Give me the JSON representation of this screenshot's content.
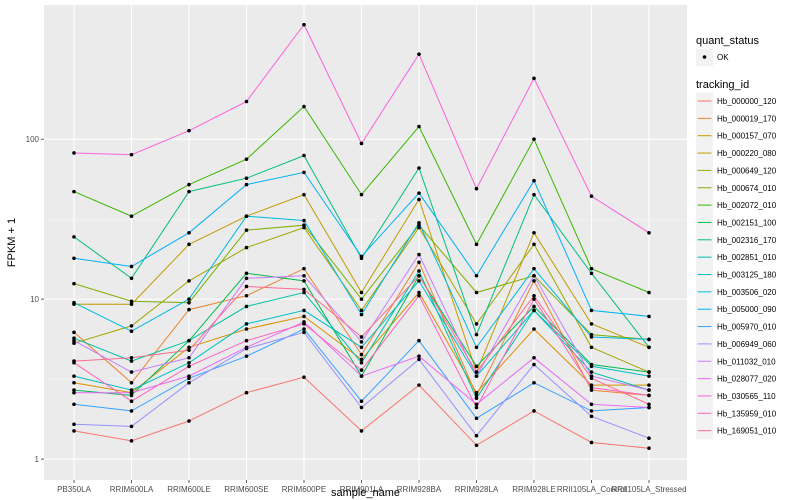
{
  "chart_data": {
    "type": "line",
    "title": "",
    "xlabel": "sample_name",
    "ylabel": "FPKM + 1",
    "yscale": "log10",
    "ylim": [
      0.74,
      690
    ],
    "yticks": [
      1,
      10,
      100
    ],
    "ytick_labels": [
      "1",
      "10",
      "100"
    ],
    "grid": true,
    "legend_position": "right",
    "categories": [
      "PB350LA",
      "RRIM600LA",
      "RRIM600LE",
      "RRIM600SE",
      "RRIM600PE",
      "RRIM901LA",
      "RRIM928BA",
      "RRIM928LA",
      "RRIM928LE",
      "RRII105LA_Control",
      "RRII105LA_Stressed"
    ],
    "point_legend": {
      "title": "quant_status",
      "entries": [
        "OK"
      ]
    },
    "line_legend_title": "tracking_id",
    "series": [
      {
        "name": "Hb_000000_120",
        "color": "#F8766D",
        "values": [
          1.5,
          1.3,
          1.73,
          2.6,
          3.25,
          1.5,
          2.9,
          1.22,
          2.0,
          1.27,
          1.17
        ]
      },
      {
        "name": "Hb_000019_170",
        "color": "#EA8331",
        "values": [
          6.2,
          3.0,
          8.6,
          10.5,
          15.5,
          4.5,
          17,
          2.5,
          13,
          2.7,
          2.5
        ]
      },
      {
        "name": "Hb_000157_070",
        "color": "#D89000",
        "values": [
          3.0,
          2.6,
          5.0,
          6.5,
          7.8,
          4.2,
          11,
          2.6,
          6.5,
          2.9,
          2.9
        ]
      },
      {
        "name": "Hb_000220_080",
        "color": "#C09B00",
        "values": [
          9.3,
          9.3,
          22,
          33,
          45,
          11,
          42,
          3.5,
          26,
          7.0,
          5.0
        ]
      },
      {
        "name": "Hb_000649_120",
        "color": "#A3A500",
        "values": [
          5.3,
          6.8,
          13,
          21,
          28,
          8.5,
          28,
          7.0,
          22,
          5.0,
          3.5
        ]
      },
      {
        "name": "Hb_000674_010",
        "color": "#7CAE00",
        "values": [
          12.5,
          9.7,
          9.5,
          27,
          29,
          10,
          29,
          11,
          14,
          6.0,
          5.6
        ]
      },
      {
        "name": "Hb_002072_010",
        "color": "#39B600",
        "values": [
          47,
          33,
          52,
          75,
          160,
          45,
          120,
          22,
          100,
          15.5,
          11
        ]
      },
      {
        "name": "Hb_002151_100",
        "color": "#00BB4E",
        "values": [
          2.7,
          2.5,
          5.5,
          14.5,
          13,
          3.3,
          14,
          3.8,
          9.0,
          3.9,
          3.5
        ]
      },
      {
        "name": "Hb_002316_170",
        "color": "#00BF7D",
        "values": [
          24.5,
          13.5,
          47,
          57,
          79,
          18,
          66,
          6.0,
          45,
          14.5,
          5.0
        ]
      },
      {
        "name": "Hb_002851_010",
        "color": "#00C1A3",
        "values": [
          5.7,
          4.1,
          5.5,
          9.0,
          11,
          4.0,
          15,
          2.4,
          8.5,
          3.5,
          2.7
        ]
      },
      {
        "name": "Hb_003125_180",
        "color": "#00BFC4",
        "values": [
          3.3,
          2.7,
          4.0,
          7.0,
          8.5,
          5.0,
          13,
          3.3,
          8.5,
          3.8,
          3.3
        ]
      },
      {
        "name": "Hb_003506_020",
        "color": "#00BAE0",
        "values": [
          9.5,
          6.3,
          10,
          33,
          31,
          8.0,
          30,
          5.0,
          15.5,
          5.8,
          5.6
        ]
      },
      {
        "name": "Hb_005000_090",
        "color": "#00B0F6",
        "values": [
          18,
          16,
          26,
          52,
          62,
          18.5,
          46,
          14,
          55,
          8.5,
          7.8
        ]
      },
      {
        "name": "Hb_005970_010",
        "color": "#35A2FF",
        "values": [
          2.2,
          2.0,
          3.2,
          4.4,
          6.5,
          2.3,
          5.5,
          1.8,
          3.0,
          2.0,
          2.1
        ]
      },
      {
        "name": "Hb_006949_060",
        "color": "#9590FF",
        "values": [
          1.65,
          1.6,
          3.0,
          4.9,
          6.2,
          2.1,
          4.2,
          1.4,
          3.9,
          1.85,
          1.35
        ]
      },
      {
        "name": "Hb_011032_010",
        "color": "#C77CFF",
        "values": [
          5.5,
          3.5,
          4.3,
          13.5,
          14,
          5.4,
          19,
          3.3,
          14,
          3.3,
          2.7
        ]
      },
      {
        "name": "Hb_028077_020",
        "color": "#E76BF3",
        "values": [
          2.6,
          2.6,
          3.3,
          5.0,
          7.2,
          3.3,
          4.4,
          2.2,
          4.3,
          2.2,
          2.1
        ]
      },
      {
        "name": "Hb_030565_110",
        "color": "#FA62DB",
        "values": [
          82,
          80,
          113,
          172,
          520,
          94,
          340,
          49,
          240,
          44,
          26
        ]
      },
      {
        "name": "Hb_135959_010",
        "color": "#FF62BC",
        "values": [
          4.0,
          2.3,
          3.8,
          5.5,
          7.0,
          3.6,
          10.5,
          2.1,
          10,
          2.8,
          2.5
        ]
      },
      {
        "name": "Hb_169051_010",
        "color": "#FF6C91",
        "values": [
          4.1,
          4.3,
          4.8,
          12,
          11.5,
          5.8,
          14,
          3.5,
          10.5,
          3.2,
          2.2
        ]
      }
    ]
  }
}
